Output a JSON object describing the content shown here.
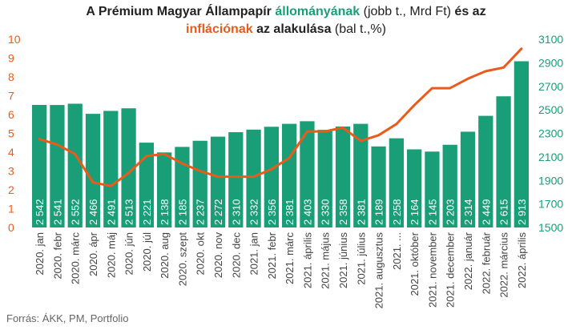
{
  "title": {
    "l1_a": "A Prémium Magyar Állampapír ",
    "l1_b": "állományának",
    "l1_c": " (jobb t., Mrd Ft) ",
    "l1_d": "és az",
    "l2_a": "inflációnak",
    "l2_b": " az alakulása",
    "l2_c": " (bal t.,%)"
  },
  "source": "Forrás: ÁKK, PM, Portfolio",
  "colors": {
    "bar": "#1a9e77",
    "line": "#ea5b1b",
    "left_axis": "#ea5b1b",
    "right_axis": "#1a9e77"
  },
  "chart_data": {
    "type": "bar+line",
    "categories": [
      "2020. jan",
      "2020. febr",
      "2020. márc",
      "2020. ápr",
      "2020. máj",
      "2020. jún",
      "2020. júl",
      "2020. aug",
      "2020. szept",
      "2020. okt",
      "2020. nov",
      "2020. dec",
      "2021. jan",
      "2021. febr",
      "2021. márc",
      "2021. április",
      "2021. május",
      "2021. június",
      "2021. július",
      "2021. augusztus",
      "2021. ...",
      "2021. október",
      "2021. november",
      "2021. december",
      "2022. január",
      "2022. február",
      "2022. március",
      "2022. április"
    ],
    "bar_values": [
      2542,
      2541,
      2552,
      2466,
      2491,
      2513,
      2221,
      2138,
      2185,
      2237,
      2272,
      2310,
      2332,
      2356,
      2381,
      2403,
      2330,
      2358,
      2381,
      2189,
      2258,
      2164,
      2145,
      2203,
      2314,
      2449,
      2615,
      2913
    ],
    "bar_labels": [
      "2 542",
      "2 541",
      "2 552",
      "2 466",
      "2 491",
      "2 513",
      "2 221",
      "2 138",
      "2 185",
      "2 237",
      "2 272",
      "2 310",
      "2 332",
      "2 356",
      "2 381",
      "2 403",
      "2 330",
      "2 358",
      "2 381",
      "2 189",
      "2 258",
      "2 164",
      "2 145",
      "2 203",
      "2 314",
      "2 449",
      "2 615",
      "2 913"
    ],
    "line_values": [
      4.7,
      4.4,
      3.9,
      2.4,
      2.2,
      2.9,
      3.8,
      3.9,
      3.4,
      3.0,
      2.7,
      2.7,
      2.7,
      3.1,
      3.7,
      5.1,
      5.1,
      5.3,
      4.6,
      4.9,
      5.5,
      6.5,
      7.4,
      7.4,
      7.9,
      8.3,
      8.5,
      9.5
    ],
    "left_axis": {
      "min": 0,
      "max": 10,
      "ticks": [
        "0",
        "1",
        "2",
        "3",
        "4",
        "5",
        "6",
        "7",
        "8",
        "9",
        "10"
      ]
    },
    "right_axis": {
      "min": 1500,
      "max": 3100,
      "ticks": [
        "1500",
        "1700",
        "1900",
        "2100",
        "2300",
        "2500",
        "2700",
        "2900",
        "3100"
      ]
    }
  }
}
